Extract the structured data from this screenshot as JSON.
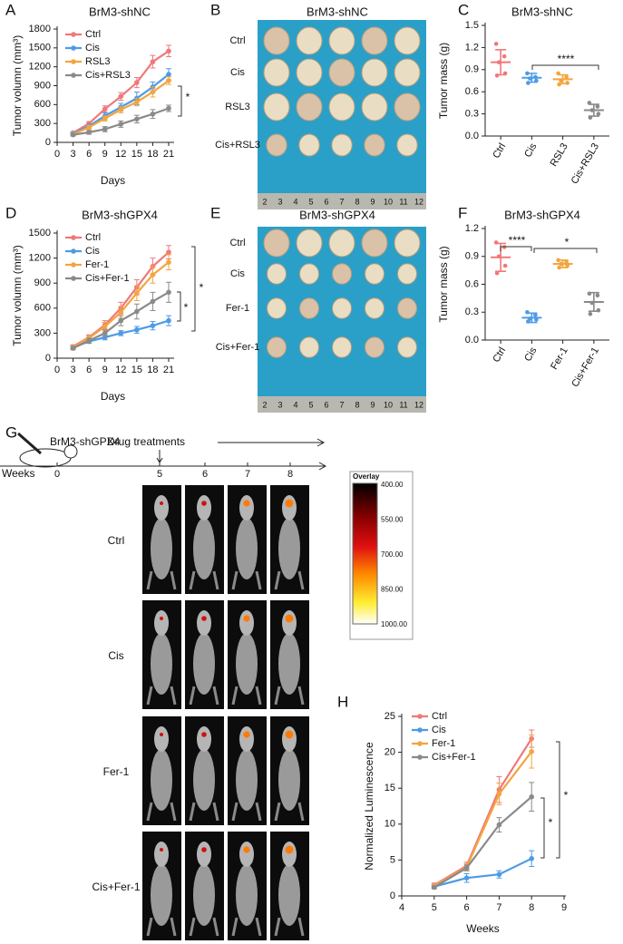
{
  "figure": {
    "panel_labels": [
      "A",
      "B",
      "C",
      "D",
      "E",
      "F",
      "G",
      "H"
    ]
  },
  "chart_data": [
    {
      "type": "line",
      "title": "BrM3-shNC",
      "xlabel": "Days",
      "ylabel": "Tumor volumn (mm³)",
      "x": [
        3,
        6,
        9,
        12,
        15,
        18,
        21
      ],
      "xlim": [
        0,
        21
      ],
      "xticks": [
        0,
        3,
        6,
        9,
        12,
        15,
        18,
        21
      ],
      "ylim": [
        0,
        1800
      ],
      "yticks": [
        0,
        300,
        600,
        900,
        1200,
        1500,
        1800
      ],
      "legend": "upper left",
      "series": [
        {
          "name": "Ctrl",
          "color": "#f0787a",
          "values": [
            150,
            300,
            530,
            730,
            950,
            1280,
            1450
          ],
          "errors": [
            20,
            30,
            50,
            60,
            80,
            100,
            90
          ]
        },
        {
          "name": "Cis",
          "color": "#4d9be6",
          "values": [
            140,
            260,
            420,
            560,
            700,
            880,
            1080
          ],
          "errors": [
            20,
            30,
            50,
            60,
            100,
            80,
            90
          ]
        },
        {
          "name": "RSL3",
          "color": "#f3a53f",
          "values": [
            130,
            240,
            380,
            520,
            640,
            800,
            980
          ],
          "errors": [
            20,
            30,
            40,
            50,
            60,
            80,
            60
          ]
        },
        {
          "name": "Cis+RSL3",
          "color": "#8a8a8a",
          "values": [
            120,
            160,
            210,
            290,
            370,
            450,
            540
          ],
          "errors": [
            20,
            30,
            40,
            50,
            60,
            70,
            50
          ]
        }
      ],
      "annotations": [
        "*"
      ]
    },
    {
      "type": "dotplot",
      "title": "BrM3-shNC",
      "ylabel": "Tumor mass (g)",
      "categories": [
        "Ctrl",
        "Cis",
        "RSL3",
        "Cis+RSL3"
      ],
      "ylim": [
        0,
        1.5
      ],
      "yticks": [
        {
          "value": 0,
          "label": "0.0"
        },
        0.3,
        0.6,
        0.9,
        1.2,
        1.5
      ],
      "groups": [
        {
          "color": "#f0787a",
          "points": [
            1.25,
            1.08,
            1.0,
            0.85,
            0.82
          ],
          "mean": 1.0,
          "sd": 0.17
        },
        {
          "color": "#4d9be6",
          "points": [
            0.85,
            0.8,
            0.78,
            0.75,
            0.72
          ],
          "mean": 0.79,
          "sd": 0.06
        },
        {
          "color": "#f3a53f",
          "points": [
            0.85,
            0.8,
            0.75,
            0.72,
            0.7
          ],
          "mean": 0.77,
          "sd": 0.06
        },
        {
          "color": "#8a8a8a",
          "points": [
            0.45,
            0.4,
            0.35,
            0.3,
            0.25
          ],
          "mean": 0.35,
          "sd": 0.08
        }
      ],
      "annotations": [
        "****"
      ]
    },
    {
      "type": "line",
      "title": "BrM3-shGPX4",
      "xlabel": "Days",
      "ylabel": "Tumor volumn (mm³)",
      "x": [
        3,
        6,
        9,
        12,
        15,
        18,
        21
      ],
      "xlim": [
        0,
        21
      ],
      "xticks": [
        0,
        3,
        6,
        9,
        12,
        15,
        18,
        21
      ],
      "ylim": [
        0,
        1500
      ],
      "yticks": [
        0,
        300,
        600,
        900,
        1200,
        1500
      ],
      "legend": "upper left",
      "series": [
        {
          "name": "Ctrl",
          "color": "#f0787a",
          "values": [
            140,
            250,
            400,
            600,
            850,
            1100,
            1270
          ],
          "errors": [
            20,
            30,
            50,
            70,
            90,
            100,
            80
          ]
        },
        {
          "name": "Cis",
          "color": "#4d9be6",
          "values": [
            130,
            200,
            250,
            300,
            340,
            390,
            450
          ],
          "errors": [
            20,
            20,
            30,
            30,
            40,
            50,
            60
          ]
        },
        {
          "name": "Fer-1",
          "color": "#f3a53f",
          "values": [
            130,
            240,
            380,
            550,
            780,
            1000,
            1150
          ],
          "errors": [
            20,
            30,
            50,
            70,
            90,
            100,
            90
          ]
        },
        {
          "name": "Cis+Fer-1",
          "color": "#8a8a8a",
          "values": [
            120,
            210,
            300,
            450,
            560,
            680,
            790
          ],
          "errors": [
            20,
            30,
            40,
            60,
            90,
            110,
            120
          ]
        }
      ],
      "annotations": [
        "*",
        "*"
      ]
    },
    {
      "type": "dotplot",
      "title": "BrM3-shGPX4",
      "ylabel": "Tumor mass (g)",
      "categories": [
        "Ctrl",
        "Cis",
        "Fer-1",
        "Cis+Fer-1"
      ],
      "ylim": [
        0,
        1.2
      ],
      "yticks": [
        {
          "value": 0,
          "label": "0.0"
        },
        0.3,
        0.6,
        0.9,
        1.2
      ],
      "groups": [
        {
          "color": "#f0787a",
          "points": [
            1.05,
            1.0,
            0.9,
            0.8,
            0.72
          ],
          "mean": 0.89,
          "sd": 0.15
        },
        {
          "color": "#4d9be6",
          "points": [
            0.3,
            0.27,
            0.23,
            0.22,
            0.2
          ],
          "mean": 0.24,
          "sd": 0.05
        },
        {
          "color": "#f3a53f",
          "points": [
            0.86,
            0.84,
            0.82,
            0.8,
            0.78
          ],
          "mean": 0.82,
          "sd": 0.04
        },
        {
          "color": "#8a8a8a",
          "points": [
            0.5,
            0.48,
            0.4,
            0.32,
            0.28
          ],
          "mean": 0.41,
          "sd": 0.1
        }
      ],
      "annotations": [
        "****",
        "*"
      ]
    },
    {
      "type": "line",
      "xlabel": "Weeks",
      "ylabel": "Normalized Luminescence",
      "x": [
        5,
        6,
        7,
        8
      ],
      "xlim": [
        4,
        9
      ],
      "xticks": [
        4,
        5,
        6,
        7,
        8,
        9
      ],
      "ylim": [
        0,
        25
      ],
      "yticks": [
        0,
        5,
        10,
        15,
        20,
        25
      ],
      "legend": "upper left",
      "series": [
        {
          "name": "Ctrl",
          "color": "#f0787a",
          "values": [
            1.5,
            4.2,
            14.8,
            21.9
          ],
          "errors": [
            0.3,
            0.5,
            1.8,
            1.2
          ]
        },
        {
          "name": "Cis",
          "color": "#4d9be6",
          "values": [
            1.3,
            2.5,
            3,
            5.2
          ],
          "errors": [
            0.2,
            0.6,
            0.5,
            1.1
          ]
        },
        {
          "name": "Fer-1",
          "color": "#f3a53f",
          "values": [
            1.4,
            4,
            14.2,
            20.1
          ],
          "errors": [
            0.2,
            0.5,
            1.5,
            2.3
          ]
        },
        {
          "name": "Cis+Fer-1",
          "color": "#8a8a8a",
          "values": [
            1.2,
            3.9,
            9.9,
            13.8
          ],
          "errors": [
            0.2,
            0.4,
            1,
            2
          ]
        }
      ],
      "annotations": [
        "*",
        "*"
      ]
    }
  ],
  "photo_panels": [
    {
      "title": "BrM3-shNC",
      "rows": [
        "Ctrl",
        "Cis",
        "RSL3",
        "Cis+RSL3"
      ],
      "ruler": [
        2,
        3,
        4,
        5,
        6,
        7,
        8,
        9,
        10,
        11,
        12
      ]
    },
    {
      "title": "BrM3-shGPX4",
      "rows": [
        "Ctrl",
        "Cis",
        "Fer-1",
        "Cis+Fer-1"
      ],
      "ruler": [
        2,
        3,
        4,
        5,
        6,
        7,
        8,
        9,
        10,
        11,
        12
      ]
    }
  ],
  "imaging": {
    "model": "BrM3-shGPX4",
    "timeline_label": "Drug treatments",
    "axis_label": "Weeks",
    "timepoints": [
      0,
      5,
      6,
      7,
      8
    ],
    "rows": [
      "Ctrl",
      "Cis",
      "Fer-1",
      "Cis+Fer-1"
    ],
    "colorbar": {
      "title": "Overlay",
      "labels": [
        "400.00",
        "550.00",
        "700.00",
        "850.00",
        "1000.00"
      ]
    }
  }
}
